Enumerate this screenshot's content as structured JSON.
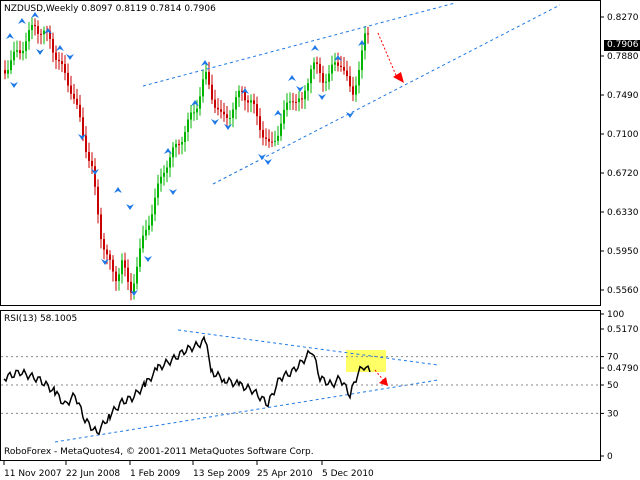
{
  "window": {
    "symbol_line": "NZDUSD,Weekly  0.8097 0.8119 0.7814 0.7906",
    "current_price": "0.7906",
    "copyright": "RoboForex - MetaQuotes4, © 2001-2011 MetaQuotes Software Corp."
  },
  "price_pane": {
    "axis_ticks": [
      "0.8270",
      "0.7880",
      "0.7490",
      "0.7100",
      "0.6720",
      "0.6330",
      "0.5950",
      "0.5560",
      "0.5170",
      "0.4790"
    ]
  },
  "rsi_pane": {
    "label": "RSI(13) 58.1005",
    "axis_ticks": [
      "100",
      "70",
      "50",
      "30",
      "0"
    ]
  },
  "time_axis": {
    "labels": [
      "11 Nov 2007",
      "22 Jun 2008",
      "1 Feb 2009",
      "13 Sep 2009",
      "25 Apr 2010",
      "5 Dec 2010"
    ]
  },
  "colors": {
    "bull": "#00b400",
    "bear": "#c80000",
    "channel": "#1e78e6",
    "arrow": "#1e78e6",
    "forecast": "#ff0000",
    "highlight": "#ffff66"
  },
  "chart_data": {
    "type": "candlestick",
    "symbol": "NZDUSD",
    "timeframe": "Weekly",
    "last_bar": {
      "open": 0.8097,
      "high": 0.8119,
      "low": 0.7814,
      "close": 0.7906
    },
    "ylim": [
      0.479,
      0.827
    ],
    "rsi": {
      "period": 13,
      "value": 58.1005,
      "levels": [
        30,
        50,
        70
      ],
      "ylim": [
        0,
        100
      ]
    }
  }
}
